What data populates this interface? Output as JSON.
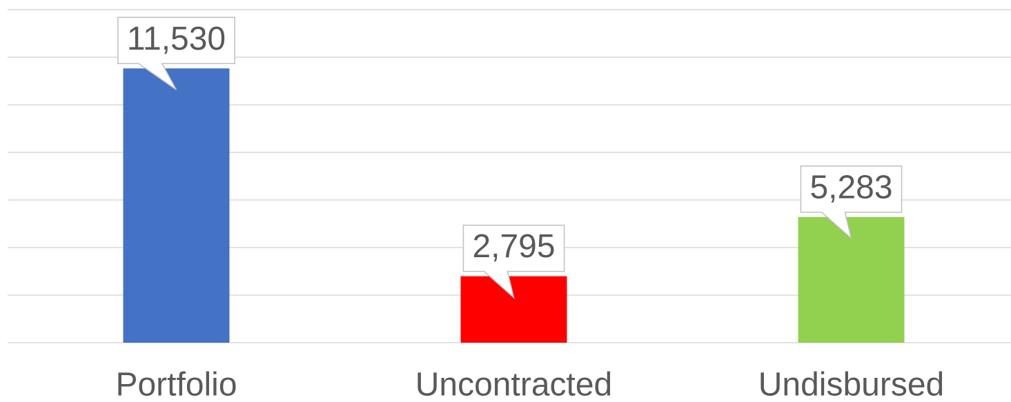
{
  "chart_data": {
    "type": "bar",
    "categories": [
      "Portfolio",
      "Uncontracted",
      "Undisbursed"
    ],
    "values": [
      11530,
      2795,
      5283
    ],
    "value_labels": [
      "11,530",
      "2,795",
      "5,283"
    ],
    "colors": [
      "#4472c4",
      "#ff0000",
      "#92d050"
    ],
    "ylim": [
      0,
      14000
    ],
    "yticks": [
      0,
      2000,
      4000,
      6000,
      8000,
      10000,
      12000,
      14000
    ],
    "grid": true
  }
}
